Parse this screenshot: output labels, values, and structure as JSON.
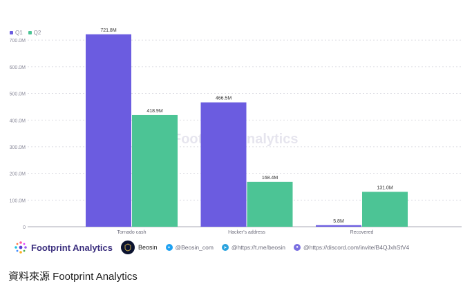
{
  "legend": {
    "items": [
      {
        "label": "Q1",
        "color": "#6B5CE0"
      },
      {
        "label": "Q2",
        "color": "#4CC495"
      }
    ]
  },
  "watermark": {
    "text": "Footprint Analytics"
  },
  "footer": {
    "brand": "Footprint Analytics",
    "partner": "Beosin",
    "twitter": "@Beosin_com",
    "telegram": "@https://t.me/beosin",
    "discord": "@https://discord.com/invite/B4QJxhStV4"
  },
  "caption": "資料來源 Footprint Analytics",
  "chart_data": {
    "type": "bar",
    "categories": [
      "Tornado cash",
      "Hacker's address",
      "Recovered"
    ],
    "series": [
      {
        "name": "Q1",
        "color": "#6B5CE0",
        "values": [
          721.8,
          466.5,
          5.8
        ],
        "labels": [
          "721.8M",
          "466.5M",
          "5.8M"
        ]
      },
      {
        "name": "Q2",
        "color": "#4CC495",
        "values": [
          418.9,
          168.4,
          131.0
        ],
        "labels": [
          "418.9M",
          "168.4M",
          "131.0M"
        ]
      }
    ],
    "yticks": [
      0,
      100,
      200,
      300,
      400,
      500,
      600,
      700
    ],
    "ytick_labels": [
      "0",
      "100.0M",
      "200.0M",
      "300.0M",
      "400.0M",
      "500.0M",
      "600.0M",
      "700.0M"
    ],
    "ylim": [
      0,
      760
    ],
    "grid": true,
    "legend_position": "top-left"
  }
}
